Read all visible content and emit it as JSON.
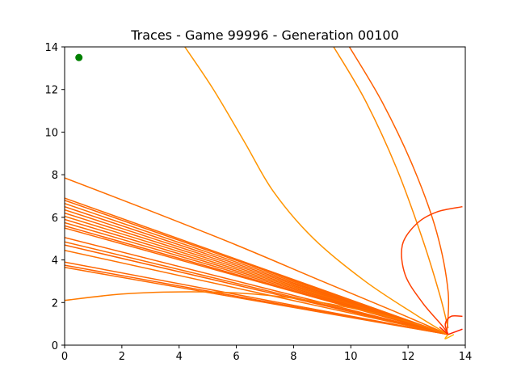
{
  "chart_data": {
    "type": "line",
    "title": "Traces - Game 99996 - Generation 00100",
    "xlabel": "",
    "ylabel": "",
    "xlim": [
      0,
      14
    ],
    "ylim": [
      0,
      14
    ],
    "x_ticks": [
      "0",
      "2",
      "4",
      "6",
      "8",
      "10",
      "12",
      "14"
    ],
    "y_ticks": [
      "0",
      "2",
      "4",
      "6",
      "8",
      "10",
      "12",
      "14"
    ],
    "grid": false,
    "legend": "none",
    "target": {
      "x": 0.5,
      "y": 13.5,
      "color": "#008000"
    },
    "fan_origin": {
      "x": 13.4,
      "y": 0.5
    },
    "fan_starts": [
      {
        "y": 6.9,
        "color": "#ff6a00"
      },
      {
        "y": 6.8,
        "color": "#ff6400"
      },
      {
        "y": 6.65,
        "color": "#ff6d00"
      },
      {
        "y": 6.5,
        "color": "#ff6200"
      },
      {
        "y": 6.35,
        "color": "#ff6a00"
      },
      {
        "y": 6.2,
        "color": "#ff6600"
      },
      {
        "y": 6.05,
        "color": "#ff7000"
      },
      {
        "y": 5.9,
        "color": "#ff6400"
      },
      {
        "y": 5.75,
        "color": "#ff6a00"
      },
      {
        "y": 5.6,
        "color": "#ff6000"
      },
      {
        "y": 5.5,
        "color": "#ff6800"
      },
      {
        "y": 5.05,
        "color": "#ff6400"
      },
      {
        "y": 4.85,
        "color": "#ff6a00"
      },
      {
        "y": 4.7,
        "color": "#ff6200"
      },
      {
        "y": 4.45,
        "color": "#ff7000"
      },
      {
        "y": 3.9,
        "color": "#ff6600"
      },
      {
        "y": 3.75,
        "color": "#ff6000"
      },
      {
        "y": 3.65,
        "color": "#ff6a00"
      }
    ],
    "series": [
      {
        "color": "#ff6e00",
        "points": [
          [
            0,
            7.85
          ],
          [
            3,
            6.3
          ],
          [
            6,
            4.7
          ],
          [
            9,
            3.0
          ],
          [
            11.5,
            1.6
          ],
          [
            13.4,
            0.5
          ]
        ]
      },
      {
        "color": "#ff7a00",
        "points": [
          [
            0,
            2.1
          ],
          [
            2,
            2.4
          ],
          [
            4,
            2.5
          ],
          [
            6,
            2.45
          ],
          [
            8,
            2.2
          ],
          [
            10,
            1.75
          ],
          [
            12,
            1.1
          ],
          [
            13.4,
            0.5
          ]
        ]
      },
      {
        "color": "#ff9600",
        "points": [
          [
            4.2,
            14.0
          ],
          [
            5.2,
            12.0
          ],
          [
            6.3,
            9.5
          ],
          [
            7.3,
            7.2
          ],
          [
            8.7,
            5.0
          ],
          [
            10.5,
            3.0
          ],
          [
            12.3,
            1.4
          ],
          [
            13.4,
            0.5
          ]
        ]
      },
      {
        "color": "#ff8a00",
        "points": [
          [
            9.4,
            14.0
          ],
          [
            10.5,
            11.5
          ],
          [
            11.6,
            8.3
          ],
          [
            12.5,
            5.0
          ],
          [
            13.1,
            2.4
          ],
          [
            13.4,
            0.8
          ]
        ]
      },
      {
        "color": "#ff6000",
        "points": [
          [
            9.95,
            14.0
          ],
          [
            11.1,
            11.4
          ],
          [
            12.2,
            8.3
          ],
          [
            13.0,
            5.3
          ],
          [
            13.4,
            2.5
          ],
          [
            13.35,
            0.5
          ]
        ]
      },
      {
        "color": "#ff4000",
        "points": [
          [
            13.9,
            6.5
          ],
          [
            13.0,
            6.25
          ],
          [
            12.3,
            5.7
          ],
          [
            11.8,
            4.7
          ],
          [
            11.9,
            3.3
          ],
          [
            12.5,
            2.0
          ],
          [
            13.2,
            0.9
          ],
          [
            13.4,
            0.5
          ]
        ]
      },
      {
        "color": "#ff3300",
        "points": [
          [
            13.4,
            0.5
          ],
          [
            13.3,
            1.0
          ],
          [
            13.5,
            1.35
          ],
          [
            13.9,
            1.35
          ]
        ]
      },
      {
        "color": "#ff2a00",
        "points": [
          [
            13.4,
            0.5
          ],
          [
            13.1,
            0.85
          ]
        ]
      },
      {
        "color": "#ff2000",
        "points": [
          [
            13.4,
            0.5
          ],
          [
            13.9,
            0.75
          ]
        ]
      },
      {
        "color": "#ffb000",
        "points": [
          [
            13.4,
            0.5
          ],
          [
            13.3,
            0.3
          ],
          [
            13.6,
            0.5
          ]
        ]
      }
    ]
  }
}
